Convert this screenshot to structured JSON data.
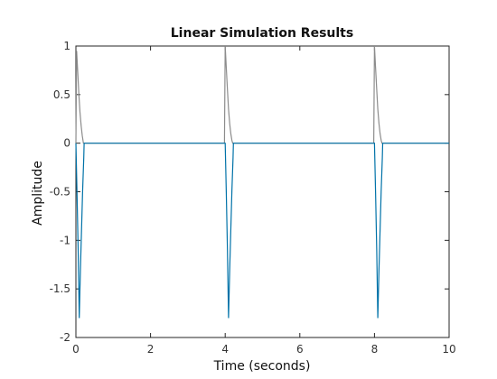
{
  "chart_data": {
    "type": "line",
    "title": "Linear Simulation Results",
    "xlabel": "Time (seconds)",
    "ylabel": "Amplitude",
    "xlim": [
      0,
      10
    ],
    "ylim": [
      -2,
      1
    ],
    "xticks": [
      "0",
      "2",
      "4",
      "6",
      "8",
      "10"
    ],
    "yticks": [
      "-2",
      "-1.5",
      "-1",
      "-0.5",
      "0",
      "0.5",
      "1"
    ],
    "grid": false,
    "colors": {
      "input": "#8c8c8c",
      "output": "#0072a8"
    },
    "series": [
      {
        "role": "input",
        "x": [
          0,
          0.02,
          0.05,
          0.08,
          0.11,
          0.14,
          0.17,
          0.2,
          3.98,
          4.0,
          4.03,
          4.06,
          4.09,
          4.12,
          4.15,
          4.18,
          4.2,
          7.98,
          8.0,
          8.03,
          8.06,
          8.09,
          8.12,
          8.15,
          8.18,
          8.2,
          10
        ],
        "y": [
          0,
          0.95,
          0.72,
          0.5,
          0.32,
          0.18,
          0.08,
          0,
          0,
          1.0,
          0.78,
          0.55,
          0.35,
          0.2,
          0.1,
          0.03,
          0,
          0,
          1.0,
          0.78,
          0.55,
          0.35,
          0.2,
          0.1,
          0.03,
          0,
          0
        ]
      },
      {
        "role": "output",
        "x": [
          0,
          0.03,
          0.06,
          0.09,
          0.12,
          0.15,
          0.18,
          0.21,
          0.22,
          4.0,
          4.03,
          4.06,
          4.09,
          4.12,
          4.15,
          4.18,
          4.21,
          4.22,
          8.0,
          8.03,
          8.06,
          8.09,
          8.12,
          8.15,
          8.18,
          8.21,
          8.22,
          10
        ],
        "y": [
          0,
          -0.5,
          -1.1,
          -1.8,
          -1.3,
          -0.9,
          -0.5,
          -0.15,
          0,
          0,
          -0.5,
          -1.1,
          -1.8,
          -1.3,
          -0.9,
          -0.5,
          -0.15,
          0,
          0,
          -0.5,
          -1.1,
          -1.8,
          -1.3,
          -0.9,
          -0.5,
          -0.15,
          0,
          0
        ]
      }
    ]
  }
}
